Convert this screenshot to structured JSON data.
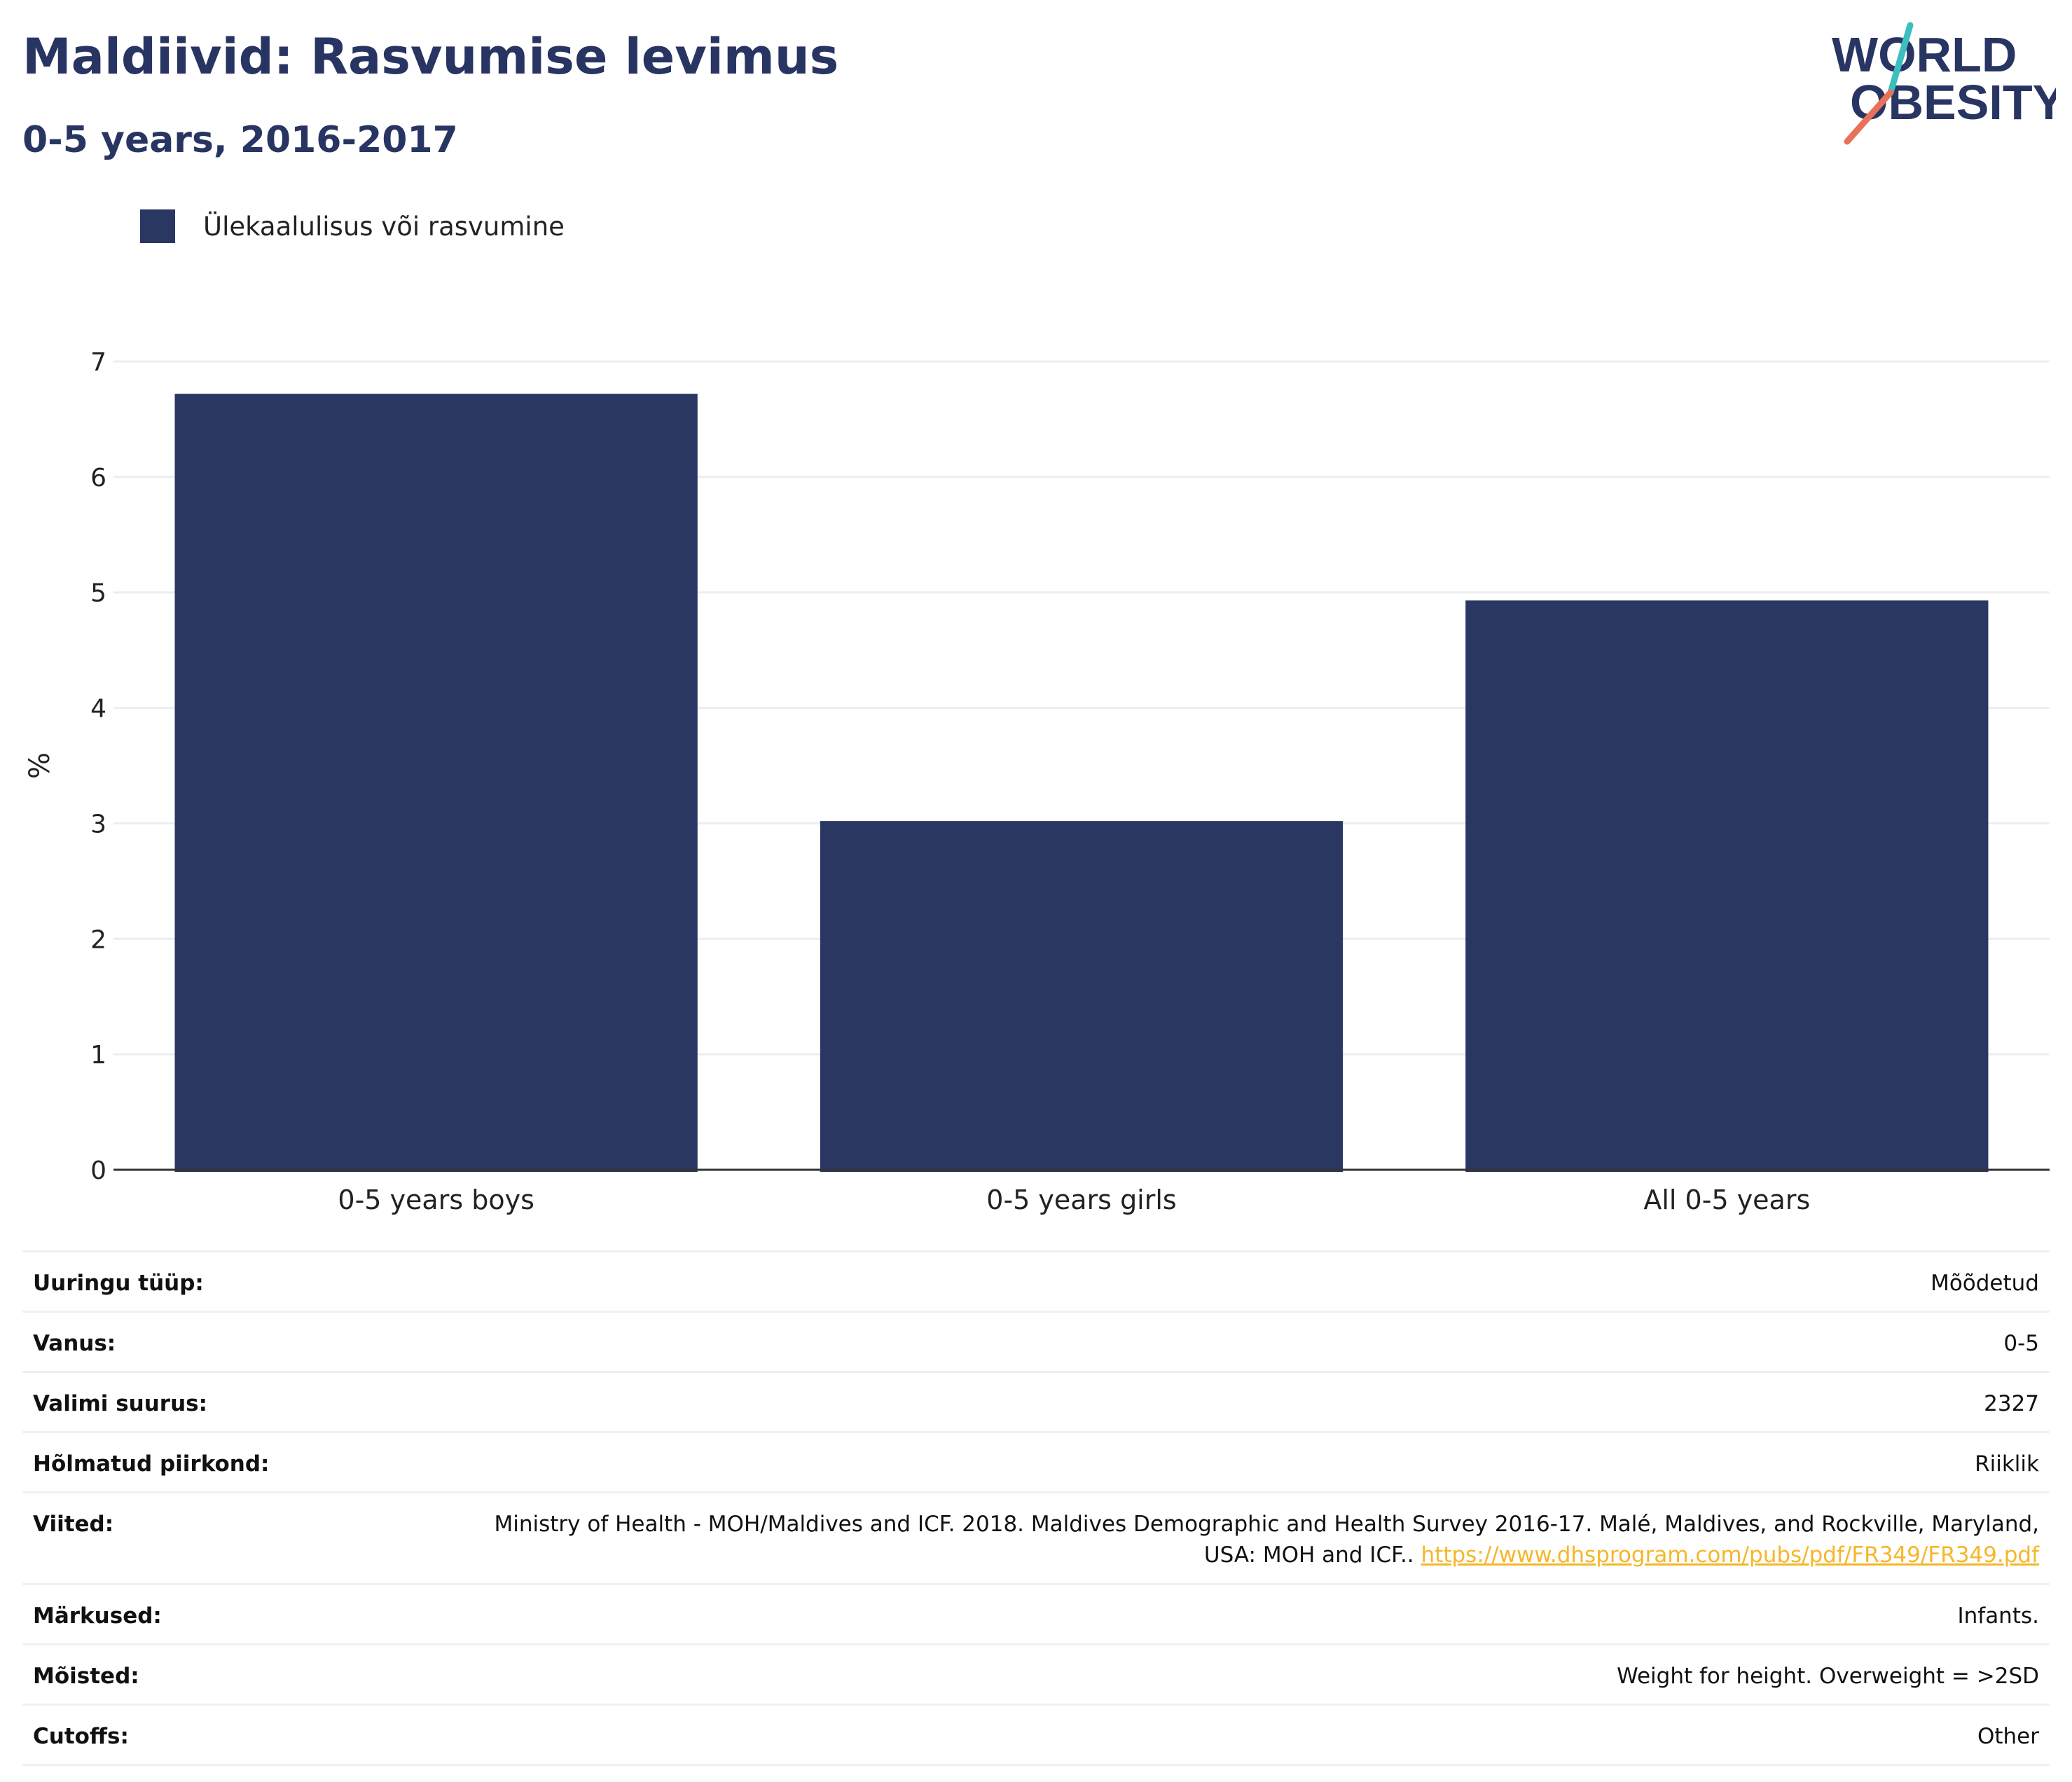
{
  "header": {
    "title": "Maldiivid: Rasvumise levimus",
    "subtitle": "0-5 years, 2016-2017"
  },
  "logo": {
    "line1": "WORLD",
    "line2": "OBESITY",
    "colors": {
      "text": "#283562",
      "slash_top": "#3bbfbf",
      "slash_bottom": "#e8715a"
    }
  },
  "colors": {
    "bar": "#2b3763",
    "grid": "#ebedf2",
    "axis": "#333333",
    "link": "#f5b72a"
  },
  "chart_data": {
    "type": "bar",
    "categories": [
      "0-5 years boys",
      "0-5 years girls",
      "All 0-5 years"
    ],
    "series": [
      {
        "name": "Ülekaalulisus või rasvumine",
        "values": [
          6.72,
          3.02,
          4.93
        ]
      }
    ],
    "ylabel": "%",
    "ylim": [
      0,
      7
    ],
    "yticks": [
      "0",
      "1",
      "2",
      "3",
      "4",
      "5",
      "6",
      "7"
    ],
    "grid": true,
    "legend": "top-left"
  },
  "info": {
    "rows": [
      {
        "label": "Uuringu tüüp:",
        "value": "Mõõdetud"
      },
      {
        "label": "Vanus:",
        "value": "0-5"
      },
      {
        "label": "Valimi suurus:",
        "value": "2327"
      },
      {
        "label": "Hõlmatud piirkond:",
        "value": "Riiklik"
      },
      {
        "label": "Viited:",
        "value": "Ministry of Health - MOH/Maldives and ICF. 2018. Maldives Demographic and Health Survey 2016-17. Malé, Maldives, and Rockville, Maryland, USA: MOH and ICF..",
        "link": "https://www.dhsprogram.com/pubs/pdf/FR349/FR349.pdf"
      },
      {
        "label": "Märkused:",
        "value": "Infants."
      },
      {
        "label": "Mõisted:",
        "value": "Weight for height. Overweight = >2SD"
      },
      {
        "label": "Cutoffs:",
        "value": "Other"
      }
    ]
  }
}
